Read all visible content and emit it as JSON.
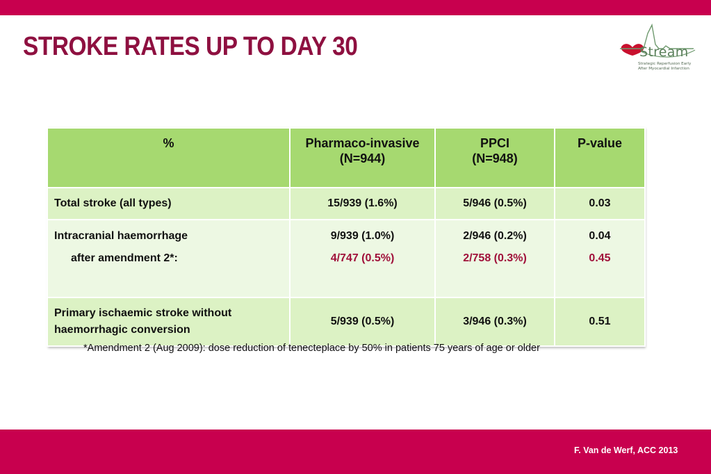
{
  "slide": {
    "title": "STROKE RATES UP TO DAY 30",
    "footnote": "*Amendment 2 (Aug 2009): dose reduction of tenecteplace by 50% in patients 75 years of age or older",
    "credit": "F. Van de Werf, ACC 2013",
    "colors": {
      "bar": "#c8004e",
      "title": "#8e1040",
      "header_fill": "#a6d970",
      "row_fill_dark": "#dcf2c4",
      "row_fill_light": "#edf8e3",
      "highlight_text": "#a0103a"
    }
  },
  "logo": {
    "word": "Stream",
    "tagline_line1": "Strategic Reperfusion Early",
    "tagline_line2": "After Myocardial Infarction",
    "icon": "heart-ecg-icon"
  },
  "table": {
    "headers": {
      "col0": "%",
      "col1_line1": "Pharmaco-invasive",
      "col1_line2": "(N=944)",
      "col2_line1": "PPCI",
      "col2_line2": "(N=948)",
      "col3": "P-value"
    },
    "rows": {
      "total": {
        "label": "Total stroke (all types)",
        "pharmaco": "15/939 (1.6%)",
        "ppci": "5/946 (0.5%)",
        "p": "0.03"
      },
      "ich": {
        "label": "Intracranial haemorrhage",
        "pharmaco": "9/939 (1.0%)",
        "ppci": "2/946 (0.2%)",
        "p": "0.04",
        "sub_label": "after amendment 2*:",
        "sub_pharmaco": "4/747 (0.5%)",
        "sub_ppci": "2/758 (0.3%)",
        "sub_p": "0.45"
      },
      "ischaemic": {
        "label_line1": "Primary ischaemic stroke without",
        "label_line2": "haemorrhagic conversion",
        "pharmaco": "5/939 (0.5%)",
        "ppci": "3/946 (0.3%)",
        "p": "0.51"
      }
    }
  }
}
